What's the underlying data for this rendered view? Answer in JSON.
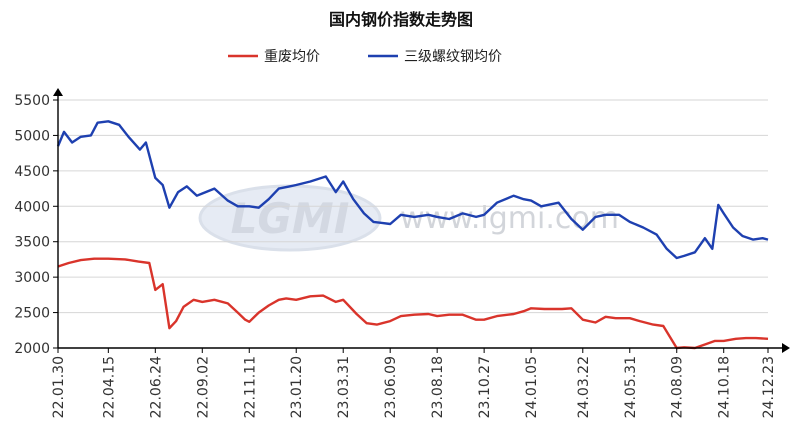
{
  "chart_data": {
    "type": "line",
    "title": "国内钢价指数走势图",
    "xlabel": "",
    "ylabel": "",
    "ylim": [
      2000,
      5500
    ],
    "yticks": [
      2000,
      2500,
      3000,
      3500,
      4000,
      4500,
      5000,
      5500
    ],
    "grid": true,
    "legend": "top-center",
    "x_range": [
      "22.01.30",
      "24.12.23"
    ],
    "x_tick_labels": [
      "22.01.30",
      "22.04.15",
      "22.06.24",
      "22.09.02",
      "22.11.11",
      "23.01.20",
      "23.03.31",
      "23.06.09",
      "23.08.18",
      "23.10.27",
      "24.01.05",
      "24.03.22",
      "24.05.31",
      "24.08.09",
      "24.10.18",
      "24.12.23"
    ],
    "watermark": {
      "logo": "LGMI",
      "url": "www.lgmi.com"
    },
    "series": [
      {
        "name": "重废均价",
        "color": "#d9342b",
        "x": [
          "22.01.30",
          "22.02.15",
          "22.03.05",
          "22.03.25",
          "22.04.15",
          "22.05.10",
          "22.05.30",
          "22.06.15",
          "22.06.24",
          "22.07.05",
          "22.07.15",
          "22.07.25",
          "22.08.05",
          "22.08.20",
          "22.09.02",
          "22.09.20",
          "22.10.10",
          "22.10.25",
          "22.11.05",
          "22.11.11",
          "22.11.25",
          "22.12.10",
          "22.12.25",
          "23.01.05",
          "23.01.20",
          "23.02.10",
          "23.03.01",
          "23.03.20",
          "23.03.31",
          "23.04.20",
          "23.05.05",
          "23.05.20",
          "23.06.09",
          "23.06.25",
          "23.07.15",
          "23.08.05",
          "23.08.18",
          "23.09.05",
          "23.09.25",
          "23.10.15",
          "23.10.27",
          "23.11.15",
          "23.12.10",
          "23.12.25",
          "24.01.05",
          "24.01.25",
          "24.02.20",
          "24.03.05",
          "24.03.22",
          "24.04.10",
          "24.04.25",
          "24.05.10",
          "24.05.31",
          "24.06.15",
          "24.07.05",
          "24.07.20",
          "24.08.09",
          "24.08.20",
          "24.09.05",
          "24.09.20",
          "24.10.05",
          "24.10.18",
          "24.11.05",
          "24.11.20",
          "24.12.05",
          "24.12.23"
        ],
        "values": [
          3150,
          3200,
          3240,
          3260,
          3260,
          3250,
          3220,
          3200,
          2820,
          2900,
          2280,
          2380,
          2580,
          2680,
          2650,
          2680,
          2630,
          2500,
          2400,
          2370,
          2500,
          2600,
          2680,
          2700,
          2680,
          2730,
          2740,
          2650,
          2680,
          2480,
          2350,
          2330,
          2380,
          2450,
          2470,
          2480,
          2450,
          2470,
          2470,
          2400,
          2400,
          2450,
          2480,
          2520,
          2560,
          2550,
          2550,
          2560,
          2400,
          2360,
          2440,
          2420,
          2420,
          2380,
          2330,
          2310,
          2000,
          2010,
          2000,
          2050,
          2100,
          2100,
          2130,
          2140,
          2140,
          2130
        ]
      },
      {
        "name": "三级螺纹钢均价",
        "color": "#1e40b0",
        "x": [
          "22.01.30",
          "22.02.08",
          "22.02.20",
          "22.03.05",
          "22.03.20",
          "22.03.30",
          "22.04.15",
          "22.05.01",
          "22.05.15",
          "22.06.01",
          "22.06.10",
          "22.06.24",
          "22.07.05",
          "22.07.15",
          "22.07.28",
          "22.08.10",
          "22.08.25",
          "22.09.02",
          "22.09.20",
          "22.10.10",
          "22.10.25",
          "22.11.11",
          "22.11.25",
          "22.12.10",
          "22.12.25",
          "23.01.10",
          "23.01.20",
          "23.02.10",
          "23.03.05",
          "23.03.20",
          "23.03.31",
          "23.04.15",
          "23.05.01",
          "23.05.15",
          "23.06.09",
          "23.06.25",
          "23.07.15",
          "23.08.05",
          "23.08.18",
          "23.09.05",
          "23.09.25",
          "23.10.15",
          "23.10.27",
          "23.11.15",
          "23.12.10",
          "23.12.25",
          "24.01.05",
          "24.01.20",
          "24.02.15",
          "24.03.05",
          "24.03.22",
          "24.04.10",
          "24.04.25",
          "24.05.15",
          "24.05.31",
          "24.06.20",
          "24.07.10",
          "24.07.25",
          "24.08.09",
          "24.08.20",
          "24.09.05",
          "24.09.20",
          "24.10.01",
          "24.10.10",
          "24.10.18",
          "24.11.01",
          "24.11.15",
          "24.12.01",
          "24.12.15",
          "24.12.23"
        ],
        "values": [
          4850,
          5050,
          4900,
          4980,
          5000,
          5180,
          5200,
          5150,
          4980,
          4800,
          4900,
          4400,
          4300,
          3980,
          4200,
          4280,
          4150,
          4180,
          4250,
          4080,
          4000,
          4000,
          3980,
          4100,
          4250,
          4280,
          4300,
          4350,
          4420,
          4200,
          4350,
          4100,
          3900,
          3780,
          3750,
          3880,
          3850,
          3880,
          3850,
          3820,
          3900,
          3850,
          3880,
          4050,
          4150,
          4100,
          4080,
          4000,
          4050,
          3820,
          3670,
          3850,
          3880,
          3880,
          3780,
          3700,
          3600,
          3400,
          3270,
          3300,
          3350,
          3550,
          3400,
          4020,
          3900,
          3700,
          3580,
          3530,
          3550,
          3530
        ]
      }
    ]
  }
}
